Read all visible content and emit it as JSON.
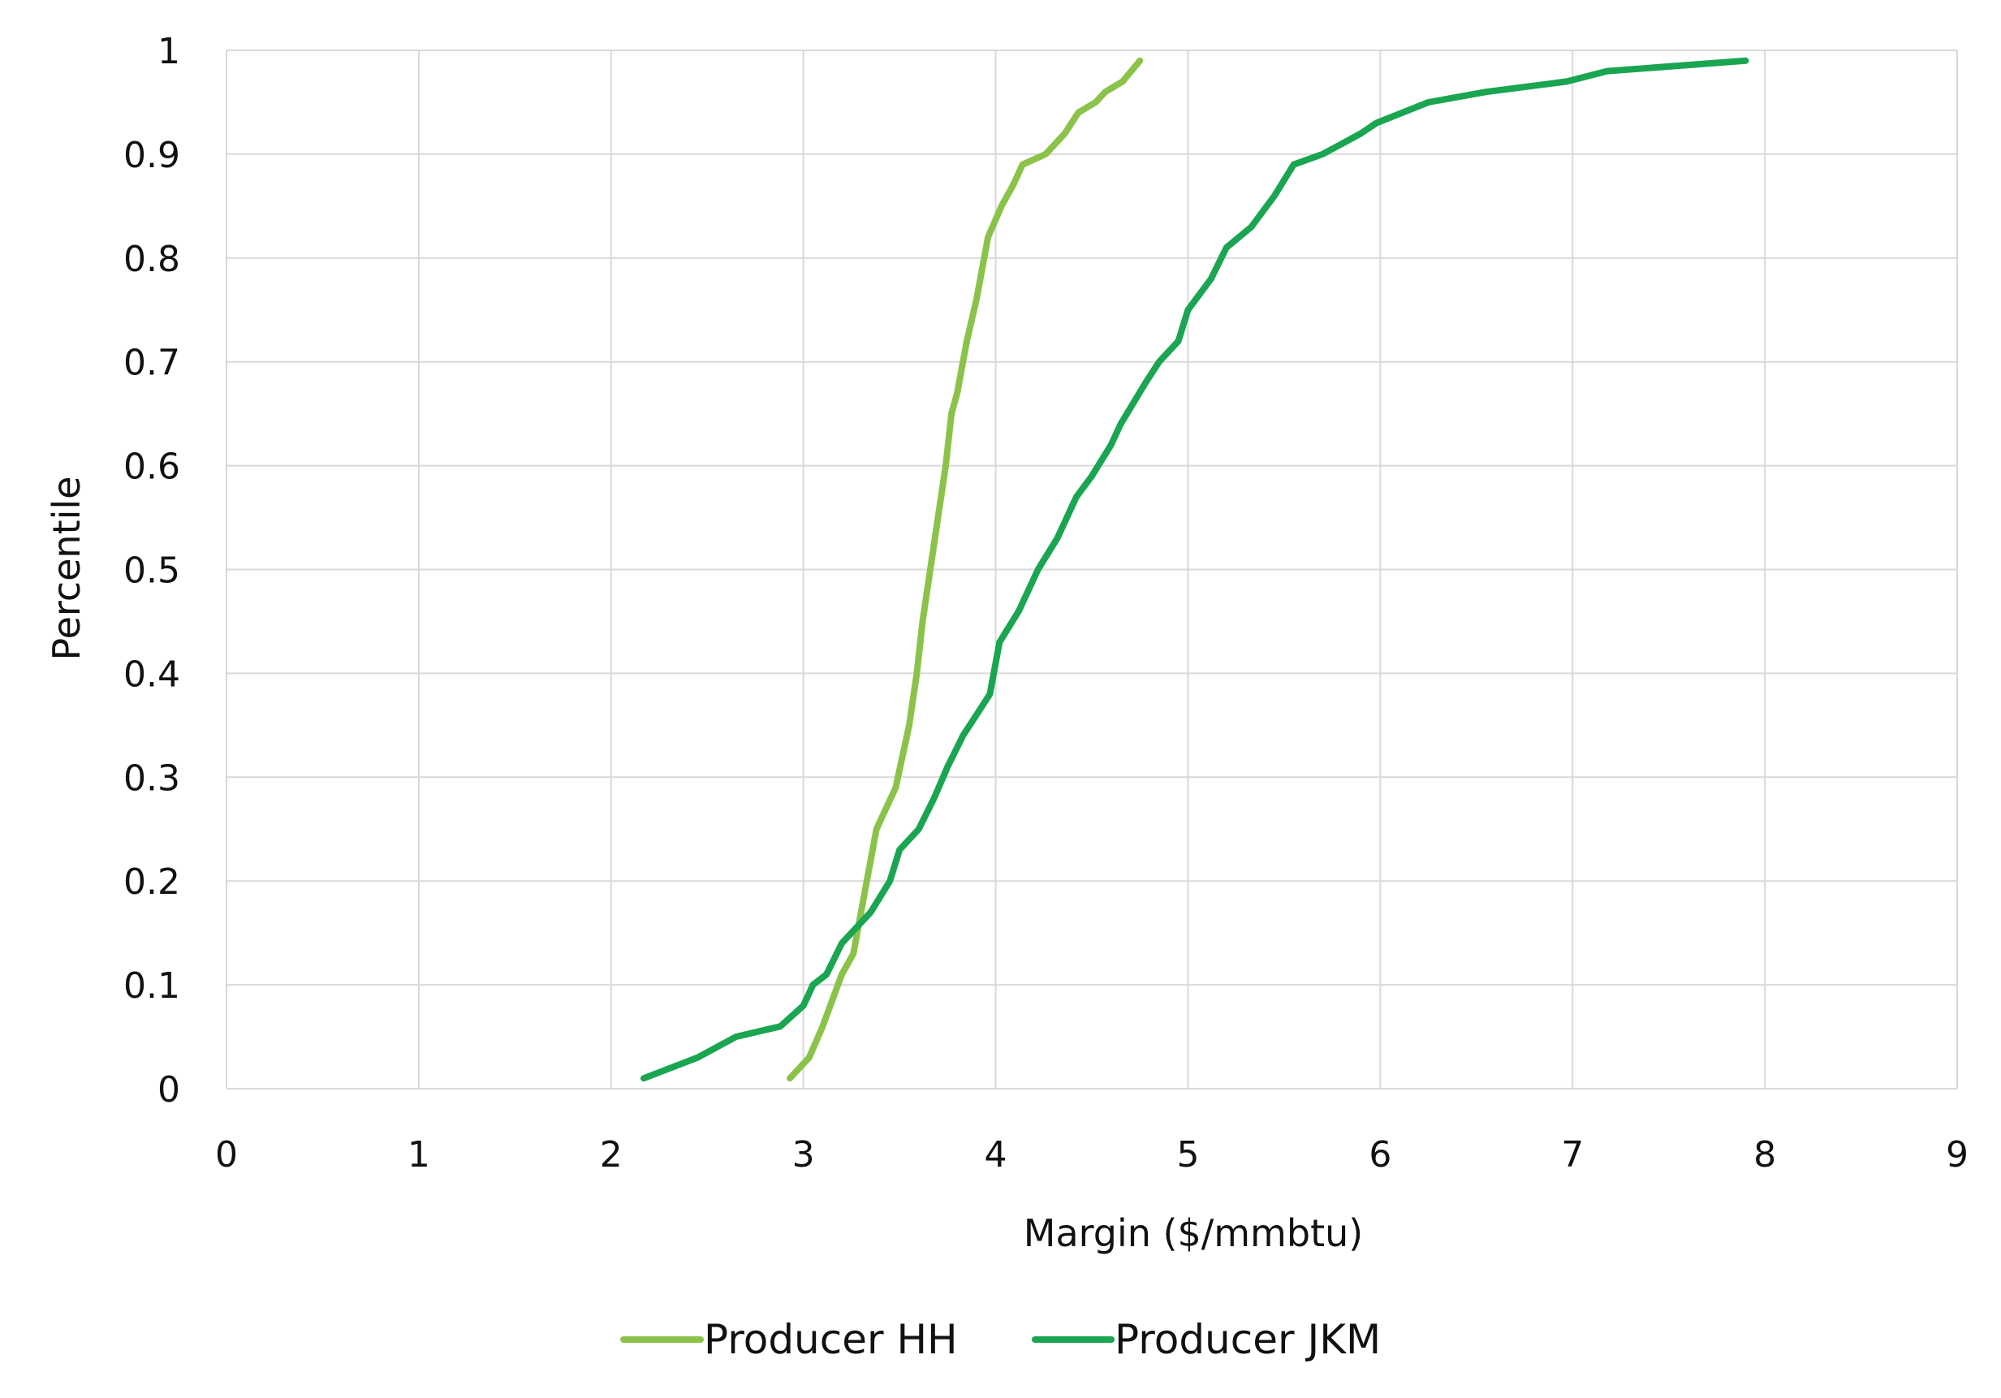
{
  "chart_data": {
    "type": "line",
    "xlabel": "Margin ($/mmbtu)",
    "ylabel": "Percentile",
    "xlim": [
      0,
      9
    ],
    "ylim": [
      0,
      1
    ],
    "x_ticks": [
      0,
      1,
      2,
      3,
      4,
      5,
      6,
      7,
      8,
      9
    ],
    "y_ticks": [
      0,
      0.1,
      0.2,
      0.3,
      0.4,
      0.5,
      0.6,
      0.7,
      0.8,
      0.9,
      1
    ],
    "x_tick_labels": [
      "0",
      "1",
      "2",
      "3",
      "4",
      "5",
      "6",
      "7",
      "8",
      "9"
    ],
    "y_tick_labels": [
      "0",
      "0.1",
      "0.2",
      "0.3",
      "0.4",
      "0.5",
      "0.6",
      "0.7",
      "0.8",
      "0.9",
      "1"
    ],
    "grid": true,
    "legend_position": "bottom",
    "series": [
      {
        "name": "Producer HH",
        "color": "#8bc34a",
        "points": [
          [
            2.93,
            0.01
          ],
          [
            3.03,
            0.03
          ],
          [
            3.1,
            0.06
          ],
          [
            3.14,
            0.08
          ],
          [
            3.2,
            0.11
          ],
          [
            3.26,
            0.13
          ],
          [
            3.33,
            0.2
          ],
          [
            3.38,
            0.25
          ],
          [
            3.48,
            0.29
          ],
          [
            3.55,
            0.35
          ],
          [
            3.59,
            0.4
          ],
          [
            3.62,
            0.45
          ],
          [
            3.66,
            0.5
          ],
          [
            3.7,
            0.55
          ],
          [
            3.74,
            0.6
          ],
          [
            3.77,
            0.65
          ],
          [
            3.8,
            0.67
          ],
          [
            3.85,
            0.72
          ],
          [
            3.9,
            0.76
          ],
          [
            3.96,
            0.82
          ],
          [
            4.03,
            0.85
          ],
          [
            4.09,
            0.87
          ],
          [
            4.14,
            0.89
          ],
          [
            4.26,
            0.9
          ],
          [
            4.36,
            0.92
          ],
          [
            4.43,
            0.94
          ],
          [
            4.52,
            0.95
          ],
          [
            4.57,
            0.96
          ],
          [
            4.66,
            0.97
          ],
          [
            4.75,
            0.99
          ]
        ]
      },
      {
        "name": "Producer JKM",
        "color": "#1aa551",
        "points": [
          [
            2.17,
            0.01
          ],
          [
            2.45,
            0.03
          ],
          [
            2.65,
            0.05
          ],
          [
            2.88,
            0.06
          ],
          [
            3.0,
            0.08
          ],
          [
            3.05,
            0.1
          ],
          [
            3.12,
            0.11
          ],
          [
            3.2,
            0.14
          ],
          [
            3.35,
            0.17
          ],
          [
            3.45,
            0.2
          ],
          [
            3.5,
            0.23
          ],
          [
            3.6,
            0.25
          ],
          [
            3.68,
            0.28
          ],
          [
            3.75,
            0.31
          ],
          [
            3.83,
            0.34
          ],
          [
            3.9,
            0.36
          ],
          [
            3.97,
            0.38
          ],
          [
            4.02,
            0.43
          ],
          [
            4.12,
            0.46
          ],
          [
            4.22,
            0.5
          ],
          [
            4.32,
            0.53
          ],
          [
            4.42,
            0.57
          ],
          [
            4.5,
            0.59
          ],
          [
            4.6,
            0.62
          ],
          [
            4.65,
            0.64
          ],
          [
            4.78,
            0.68
          ],
          [
            4.85,
            0.7
          ],
          [
            4.95,
            0.72
          ],
          [
            5.0,
            0.75
          ],
          [
            5.12,
            0.78
          ],
          [
            5.2,
            0.81
          ],
          [
            5.33,
            0.83
          ],
          [
            5.45,
            0.86
          ],
          [
            5.55,
            0.89
          ],
          [
            5.7,
            0.9
          ],
          [
            5.9,
            0.92
          ],
          [
            5.98,
            0.93
          ],
          [
            6.25,
            0.95
          ],
          [
            6.55,
            0.96
          ],
          [
            6.97,
            0.97
          ],
          [
            7.18,
            0.98
          ],
          [
            7.9,
            0.99
          ]
        ]
      }
    ]
  }
}
